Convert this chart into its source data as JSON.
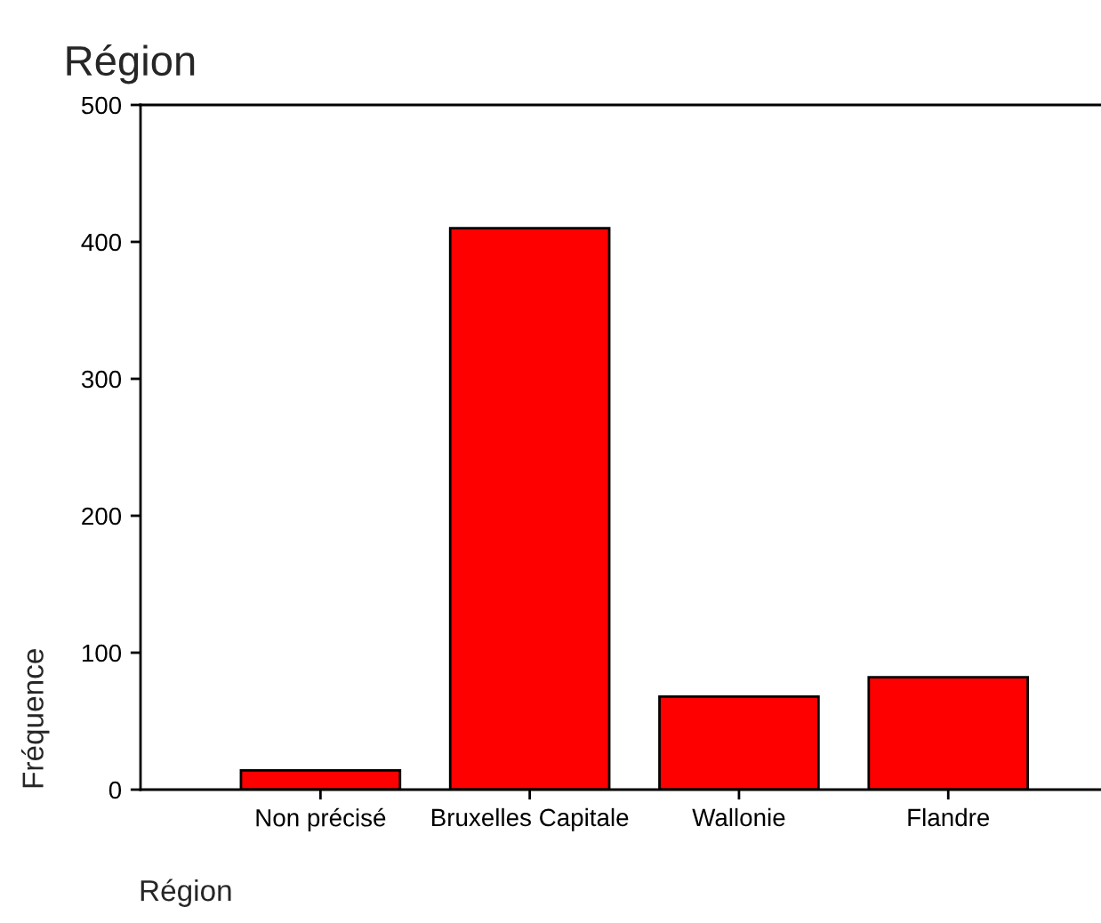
{
  "chart_data": {
    "type": "bar",
    "title": "Région",
    "xlabel": "Région",
    "ylabel": "Fréquence",
    "categories": [
      "Non précisé",
      "Bruxelles Capitale",
      "Wallonie",
      "Flandre"
    ],
    "values": [
      14,
      410,
      68,
      82
    ],
    "color": "#ff0000",
    "ylim": [
      0,
      500
    ],
    "yticks": [
      0,
      100,
      200,
      300,
      400,
      500
    ],
    "grid": false
  }
}
